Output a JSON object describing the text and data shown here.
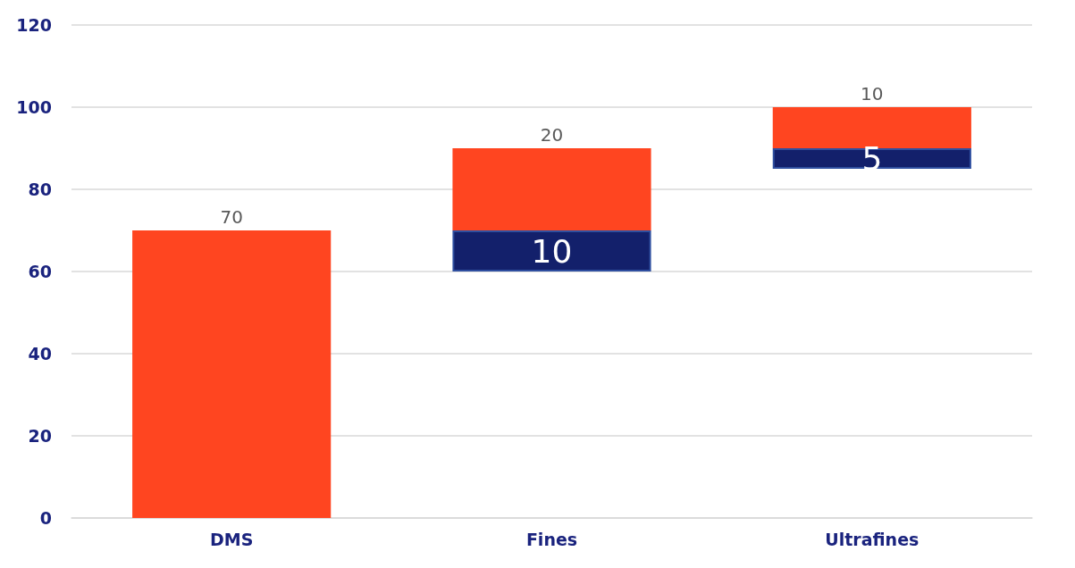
{
  "chart_data": {
    "type": "bar",
    "categories": [
      "DMS",
      "Fines",
      "Ultrafines"
    ],
    "series": [
      {
        "color": "#ff4520",
        "base": [
          0,
          70,
          90
        ],
        "values": [
          70,
          20,
          10
        ]
      },
      {
        "color": "#13206b",
        "base": [
          null,
          60,
          85
        ],
        "values": [
          null,
          10,
          5
        ]
      }
    ],
    "ylim": [
      0,
      120
    ],
    "yticks": [
      0,
      20,
      40,
      60,
      80,
      100,
      120
    ],
    "grid": "y",
    "data_labels": true
  }
}
